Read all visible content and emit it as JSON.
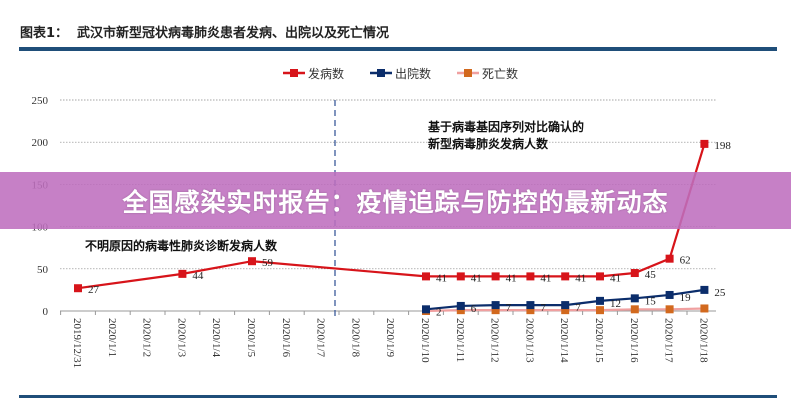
{
  "header": {
    "figure_label": "图表1：",
    "title": "武汉市新型冠状病毒肺炎患者发病、出院以及死亡情况"
  },
  "banner": {
    "text": "全国感染实时报告：疫情追踪与防控的最新动态"
  },
  "chart_data": {
    "type": "line",
    "title": "武汉市新型冠状病毒肺炎患者发病、出院以及死亡情况",
    "categories": [
      "2019/12/31",
      "2020/1/1",
      "2020/1/2",
      "2020/1/3",
      "2020/1/4",
      "2020/1/5",
      "2020/1/6",
      "2020/1/7",
      "2020/1/8",
      "2020/1/9",
      "2020/1/10",
      "2020/1/11",
      "2020/1/12",
      "2020/1/13",
      "2020/1/14",
      "2020/1/15",
      "2020/1/16",
      "2020/1/17",
      "2020/1/18"
    ],
    "ylim": [
      0,
      250
    ],
    "yticks": [
      0,
      50,
      100,
      150,
      200,
      250
    ],
    "grid": true,
    "legend": "top",
    "series": [
      {
        "name": "发病数",
        "color": "#d7141a",
        "values": [
          27,
          null,
          null,
          44,
          null,
          59,
          null,
          null,
          null,
          null,
          41,
          41,
          41,
          41,
          41,
          41,
          45,
          62,
          198
        ],
        "labels": true
      },
      {
        "name": "出院数",
        "color": "#0b2d6b",
        "values": [
          null,
          null,
          null,
          null,
          null,
          null,
          null,
          null,
          null,
          null,
          2,
          6,
          7,
          7,
          7,
          12,
          15,
          19,
          25
        ],
        "labels": true
      },
      {
        "name": "死亡数",
        "color": "#f0a0a0",
        "marker_color": "#d2691e",
        "values": [
          null,
          null,
          null,
          null,
          null,
          null,
          null,
          null,
          null,
          null,
          0,
          1,
          1,
          1,
          1,
          1,
          2,
          2,
          3
        ],
        "labels": false
      }
    ],
    "annotations": [
      {
        "text": "不明原因的病毒性肺炎诊断发病人数"
      },
      {
        "text": "基于病毒基因序列对比确认的",
        "text2": "新型病毒肺炎发病人数"
      }
    ],
    "divider_between": [
      "2020/1/7",
      "2020/1/8"
    ]
  }
}
